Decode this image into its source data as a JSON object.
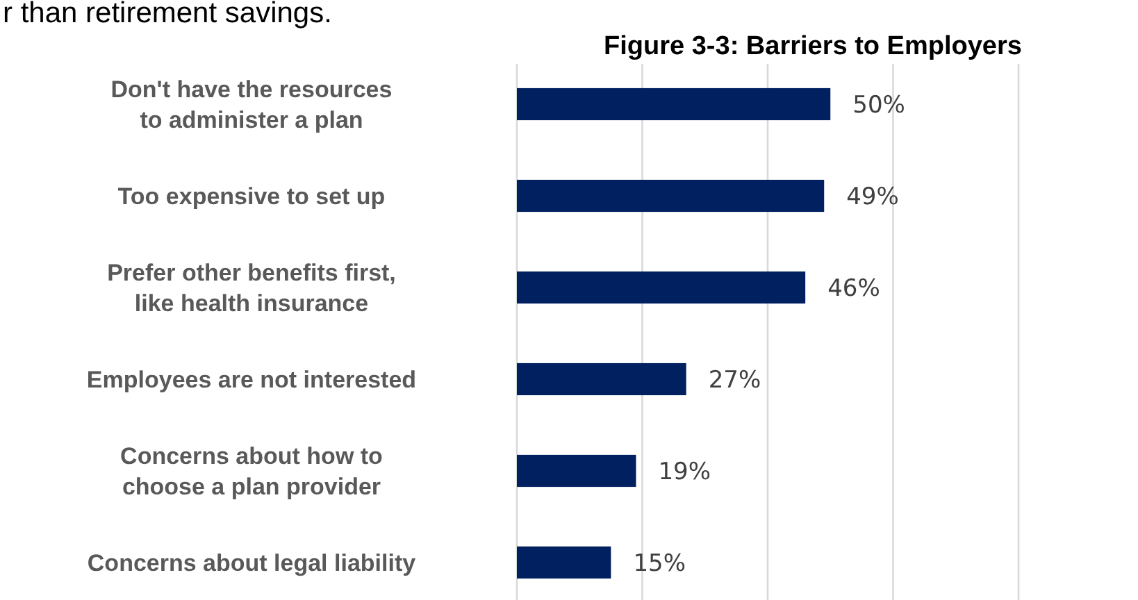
{
  "chart_data": {
    "type": "bar",
    "orientation": "horizontal",
    "title": "Figure 3-3: Barriers to Employers",
    "annotations": [
      "r than retirement savings."
    ],
    "categories": [
      "Don't have the resources to administer a plan",
      "Too expensive to set up",
      "Prefer other benefits first, like health insurance",
      "Employees are not interested",
      "Concerns about how to choose a plan provider",
      "Concerns about legal liability"
    ],
    "values": [
      50,
      49,
      46,
      27,
      19,
      15
    ],
    "value_labels": [
      "50%",
      "49%",
      "46%",
      "27%",
      "19%",
      "15%"
    ],
    "color": "#002060",
    "xlim": [
      0,
      80
    ],
    "xticks": [
      {
        "value": 0,
        "label": null
      },
      {
        "value": 20,
        "label": null
      },
      {
        "value": 40,
        "label": null
      },
      {
        "value": 60,
        "label": null
      },
      {
        "value": 80,
        "label": null
      }
    ],
    "tick_labels": "y",
    "grid": "x"
  }
}
